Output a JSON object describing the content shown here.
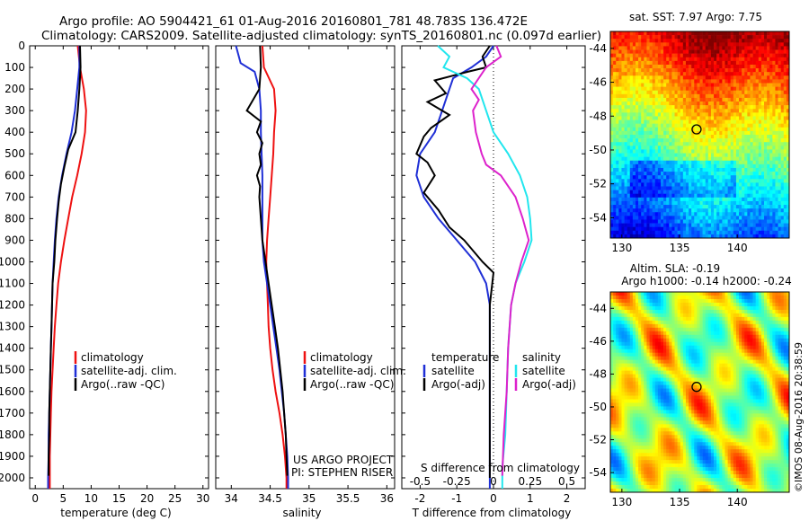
{
  "header": {
    "line1": "Argo profile: AO 5904421_61 01-Aug-2016 20160801_781 48.783S 136.472E",
    "line2": "Climatology: CARS2009. Satellite-adjusted climatology: synTS_20160801.nc (0.097d earlier)"
  },
  "colors": {
    "climatology": "#ee1111",
    "satellite": "#1f2fd6",
    "argo": "#000000",
    "salinity_satellite": "#22e6ee",
    "salinity_argo": "#dd22cc"
  },
  "chart_data": [
    {
      "type": "line",
      "panel": "temperature",
      "xlabel": "temperature (deg C)",
      "ylabel": "",
      "xlim": [
        -1,
        31
      ],
      "ylim": [
        2050,
        0
      ],
      "xticks": [
        "0",
        "5",
        "10",
        "15",
        "20",
        "25",
        "30"
      ],
      "yticks": [
        "0",
        "100",
        "200",
        "300",
        "400",
        "500",
        "600",
        "700",
        "800",
        "900",
        "1000",
        "1100",
        "1200",
        "1300",
        "1400",
        "1500",
        "1600",
        "1700",
        "1800",
        "1900",
        "2000"
      ],
      "legend": [
        "climatology",
        "satellite-adj. clim.",
        "Argo(..raw -QC)"
      ],
      "series": [
        {
          "name": "climatology",
          "color_key": "climatology",
          "points": [
            [
              7.6,
              0
            ],
            [
              8.0,
              100
            ],
            [
              8.7,
              200
            ],
            [
              9.1,
              300
            ],
            [
              8.9,
              400
            ],
            [
              8.3,
              500
            ],
            [
              7.5,
              600
            ],
            [
              6.6,
              700
            ],
            [
              5.9,
              800
            ],
            [
              5.2,
              900
            ],
            [
              4.6,
              1000
            ],
            [
              4.1,
              1100
            ],
            [
              3.8,
              1200
            ],
            [
              3.5,
              1300
            ],
            [
              3.3,
              1400
            ],
            [
              3.1,
              1500
            ],
            [
              2.9,
              1600
            ],
            [
              2.8,
              1700
            ],
            [
              2.7,
              1800
            ],
            [
              2.6,
              1900
            ],
            [
              2.6,
              2000
            ],
            [
              2.6,
              2050
            ]
          ]
        },
        {
          "name": "satellite-adj. clim.",
          "color_key": "satellite",
          "points": [
            [
              7.9,
              0
            ],
            [
              7.9,
              100
            ],
            [
              7.5,
              200
            ],
            [
              7.1,
              300
            ],
            [
              6.5,
              400
            ],
            [
              5.6,
              500
            ],
            [
              4.8,
              600
            ],
            [
              4.2,
              700
            ],
            [
              3.8,
              800
            ],
            [
              3.5,
              900
            ],
            [
              3.3,
              1000
            ],
            [
              3.1,
              1100
            ],
            [
              3.0,
              1200
            ],
            [
              2.9,
              1300
            ],
            [
              2.8,
              1400
            ],
            [
              2.7,
              1500
            ],
            [
              2.6,
              1600
            ],
            [
              2.5,
              1700
            ],
            [
              2.4,
              1800
            ],
            [
              2.4,
              1900
            ],
            [
              2.3,
              2000
            ],
            [
              2.3,
              2050
            ]
          ]
        },
        {
          "name": "Argo(..raw -QC)",
          "color_key": "argo",
          "points": [
            [
              8.0,
              0
            ],
            [
              8.1,
              100
            ],
            [
              7.9,
              200
            ],
            [
              7.6,
              300
            ],
            [
              7.2,
              400
            ],
            [
              5.9,
              480
            ],
            [
              5.2,
              560
            ],
            [
              4.6,
              640
            ],
            [
              4.2,
              720
            ],
            [
              3.9,
              800
            ],
            [
              3.6,
              900
            ],
            [
              3.4,
              1000
            ],
            [
              3.1,
              1100
            ],
            [
              3.0,
              1200
            ],
            [
              2.9,
              1300
            ],
            [
              2.8,
              1400
            ],
            [
              2.7,
              1500
            ],
            [
              2.6,
              1600
            ],
            [
              2.5,
              1700
            ],
            [
              2.5,
              1800
            ],
            [
              2.4,
              1900
            ],
            [
              2.4,
              1990
            ]
          ]
        }
      ]
    },
    {
      "type": "line",
      "panel": "salinity",
      "xlabel": "salinity",
      "ylabel": "",
      "xlim": [
        33.8,
        36.1
      ],
      "ylim": [
        2050,
        0
      ],
      "xticks": [
        "34",
        "34.5",
        "35",
        "35.5",
        "36"
      ],
      "legend": [
        "climatology",
        "satellite-adj. clim.",
        "Argo(..raw -QC)"
      ],
      "annotation": [
        "US ARGO PROJECT",
        "PI: STEPHEN RISER"
      ],
      "series": [
        {
          "name": "climatology",
          "color_key": "climatology",
          "points": [
            [
              34.4,
              0
            ],
            [
              34.42,
              100
            ],
            [
              34.55,
              200
            ],
            [
              34.57,
              300
            ],
            [
              34.55,
              400
            ],
            [
              34.54,
              500
            ],
            [
              34.52,
              600
            ],
            [
              34.5,
              700
            ],
            [
              34.48,
              800
            ],
            [
              34.46,
              900
            ],
            [
              34.45,
              1000
            ],
            [
              34.46,
              1100
            ],
            [
              34.47,
              1200
            ],
            [
              34.48,
              1300
            ],
            [
              34.5,
              1400
            ],
            [
              34.53,
              1500
            ],
            [
              34.57,
              1600
            ],
            [
              34.62,
              1700
            ],
            [
              34.66,
              1800
            ],
            [
              34.69,
              1900
            ],
            [
              34.71,
              2000
            ],
            [
              34.71,
              2050
            ]
          ]
        },
        {
          "name": "satellite-adj. clim.",
          "color_key": "satellite",
          "points": [
            [
              34.06,
              0
            ],
            [
              34.12,
              80
            ],
            [
              34.3,
              120
            ],
            [
              34.36,
              200
            ],
            [
              34.38,
              300
            ],
            [
              34.38,
              400
            ],
            [
              34.39,
              500
            ],
            [
              34.4,
              600
            ],
            [
              34.4,
              700
            ],
            [
              34.4,
              800
            ],
            [
              34.4,
              900
            ],
            [
              34.42,
              1000
            ],
            [
              34.46,
              1100
            ],
            [
              34.5,
              1200
            ],
            [
              34.54,
              1300
            ],
            [
              34.58,
              1400
            ],
            [
              34.62,
              1500
            ],
            [
              34.65,
              1600
            ],
            [
              34.68,
              1700
            ],
            [
              34.7,
              1800
            ],
            [
              34.72,
              1900
            ],
            [
              34.73,
              2000
            ],
            [
              34.73,
              2050
            ]
          ]
        },
        {
          "name": "Argo(..raw -QC)",
          "color_key": "argo",
          "points": [
            [
              34.37,
              0
            ],
            [
              34.38,
              100
            ],
            [
              34.36,
              200
            ],
            [
              34.2,
              300
            ],
            [
              34.38,
              350
            ],
            [
              34.33,
              400
            ],
            [
              34.4,
              450
            ],
            [
              34.36,
              500
            ],
            [
              34.38,
              550
            ],
            [
              34.33,
              600
            ],
            [
              34.37,
              650
            ],
            [
              34.36,
              700
            ],
            [
              34.38,
              800
            ],
            [
              34.4,
              900
            ],
            [
              34.44,
              1000
            ],
            [
              34.48,
              1100
            ],
            [
              34.52,
              1200
            ],
            [
              34.56,
              1300
            ],
            [
              34.6,
              1400
            ],
            [
              34.63,
              1500
            ],
            [
              34.66,
              1600
            ],
            [
              34.68,
              1700
            ],
            [
              34.7,
              1800
            ],
            [
              34.71,
              1900
            ],
            [
              34.72,
              1990
            ]
          ]
        }
      ]
    },
    {
      "type": "line",
      "panel": "difference",
      "xlabel": "T difference from climatology",
      "xlabel_top": "S difference from climatology",
      "ylabel": "",
      "xlim": [
        -2.5,
        2.5
      ],
      "ylim": [
        2050,
        0
      ],
      "xticks_T": [
        "-2",
        "-1",
        "0",
        "1",
        "2"
      ],
      "xticks_S": [
        "-0.5",
        "-0.25",
        "0",
        "0.25",
        "0.5"
      ],
      "zero_line": "dotted",
      "legend_temperature": {
        "title": "temperature",
        "items": [
          "satellite",
          "Argo(-adj)"
        ]
      },
      "legend_salinity": {
        "title": "salinity",
        "items": [
          "satellite",
          "Argo(-adj)"
        ]
      },
      "series": [
        {
          "name": "temperature satellite",
          "color_key": "satellite",
          "points": [
            [
              0.0,
              0
            ],
            [
              -0.2,
              50
            ],
            [
              -0.6,
              100
            ],
            [
              -1.1,
              150
            ],
            [
              -1.2,
              200
            ],
            [
              -1.4,
              300
            ],
            [
              -1.6,
              400
            ],
            [
              -2.0,
              500
            ],
            [
              -2.1,
              600
            ],
            [
              -1.9,
              700
            ],
            [
              -1.5,
              800
            ],
            [
              -1.0,
              900
            ],
            [
              -0.5,
              1000
            ],
            [
              -0.2,
              1100
            ],
            [
              -0.1,
              1200
            ],
            [
              -0.1,
              1500
            ],
            [
              -0.1,
              1800
            ],
            [
              -0.1,
              2050
            ]
          ]
        },
        {
          "name": "temperature Argo(-adj)",
          "color_key": "argo",
          "points": [
            [
              -0.1,
              0
            ],
            [
              -0.3,
              50
            ],
            [
              -0.2,
              100
            ],
            [
              -0.7,
              120
            ],
            [
              -1.6,
              160
            ],
            [
              -1.3,
              220
            ],
            [
              -1.8,
              260
            ],
            [
              -1.2,
              320
            ],
            [
              -1.7,
              380
            ],
            [
              -1.9,
              420
            ],
            [
              -2.1,
              500
            ],
            [
              -1.8,
              540
            ],
            [
              -1.6,
              600
            ],
            [
              -1.9,
              680
            ],
            [
              -1.5,
              760
            ],
            [
              -1.2,
              840
            ],
            [
              -0.8,
              900
            ],
            [
              -0.3,
              1000
            ],
            [
              0.0,
              1050
            ],
            [
              -0.1,
              1200
            ],
            [
              -0.1,
              1500
            ],
            [
              -0.1,
              1800
            ],
            [
              -0.1,
              2000
            ]
          ]
        },
        {
          "name": "salinity satellite",
          "color_key": "salinity_satellite",
          "points": [
            [
              -0.38,
              0
            ],
            [
              -0.3,
              50
            ],
            [
              -0.34,
              100
            ],
            [
              -0.18,
              150
            ],
            [
              -0.1,
              200
            ],
            [
              -0.05,
              300
            ],
            [
              0.0,
              400
            ],
            [
              0.1,
              500
            ],
            [
              0.18,
              600
            ],
            [
              0.23,
              700
            ],
            [
              0.25,
              800
            ],
            [
              0.26,
              900
            ],
            [
              0.21,
              1000
            ],
            [
              0.15,
              1100
            ],
            [
              0.12,
              1200
            ],
            [
              0.1,
              1400
            ],
            [
              0.09,
              1600
            ],
            [
              0.08,
              1800
            ],
            [
              0.06,
              1950
            ],
            [
              0.06,
              2050
            ]
          ]
        },
        {
          "name": "salinity Argo(-adj)",
          "color_key": "salinity_argo",
          "points": [
            [
              0.02,
              0
            ],
            [
              0.05,
              50
            ],
            [
              -0.05,
              100
            ],
            [
              -0.15,
              200
            ],
            [
              -0.1,
              250
            ],
            [
              -0.14,
              300
            ],
            [
              -0.12,
              400
            ],
            [
              -0.08,
              500
            ],
            [
              -0.05,
              550
            ],
            [
              0.05,
              600
            ],
            [
              0.15,
              700
            ],
            [
              0.2,
              800
            ],
            [
              0.24,
              900
            ],
            [
              0.19,
              1000
            ],
            [
              0.15,
              1100
            ],
            [
              0.12,
              1200
            ],
            [
              0.1,
              1400
            ],
            [
              0.09,
              1600
            ],
            [
              0.07,
              1800
            ],
            [
              0.06,
              1990
            ]
          ]
        }
      ]
    },
    {
      "type": "heatmap",
      "panel": "sst_map",
      "title": "sat. SST: 7.97 Argo: 7.75",
      "xticks": [
        "130",
        "135",
        "140"
      ],
      "yticks": [
        "-44",
        "-46",
        "-48",
        "-50",
        "-52",
        "-54"
      ],
      "xlim": [
        129,
        144.5
      ],
      "ylim": [
        -55.2,
        -43
      ],
      "marker": {
        "lon": 136.472,
        "lat": -48.783
      }
    },
    {
      "type": "heatmap",
      "panel": "sla_map",
      "title_line1": "Altim. SLA: -0.19",
      "title_line2": "Argo h1000: -0.14 h2000: -0.24",
      "xticks": [
        "130",
        "135",
        "140"
      ],
      "yticks": [
        "-44",
        "-46",
        "-48",
        "-50",
        "-52",
        "-54"
      ],
      "xlim": [
        129,
        144.5
      ],
      "ylim": [
        -55.2,
        -43
      ],
      "marker": {
        "lon": 136.472,
        "lat": -48.783
      },
      "side_label": "©IMOS 08-Aug-2016 20:38:59"
    }
  ]
}
